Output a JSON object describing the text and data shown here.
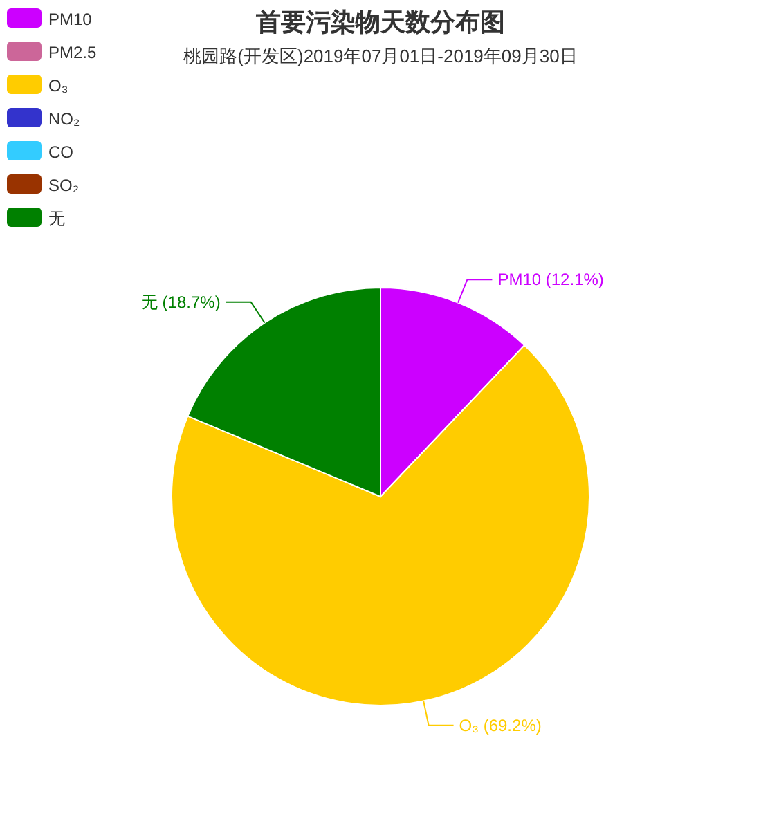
{
  "chart_data": {
    "type": "pie",
    "title": "首要污染物天数分布图",
    "subtitle": "桃园路(开发区)2019年07月01日-2019年09月30日",
    "categories": [
      "PM10",
      "PM2.5",
      "O₃",
      "NO₂",
      "CO",
      "SO₂",
      "无"
    ],
    "values": [
      12.1,
      0,
      69.2,
      0,
      0,
      0,
      18.7
    ],
    "colors": [
      "#cc00ff",
      "#cc6699",
      "#ffcc00",
      "#3333cc",
      "#33ccff",
      "#993300",
      "#008000"
    ],
    "value_labels": [
      "PM10 (12.1%)",
      null,
      "O₃ (69.2%)",
      null,
      null,
      null,
      "无 (18.7%)"
    ],
    "legend": "top left"
  }
}
